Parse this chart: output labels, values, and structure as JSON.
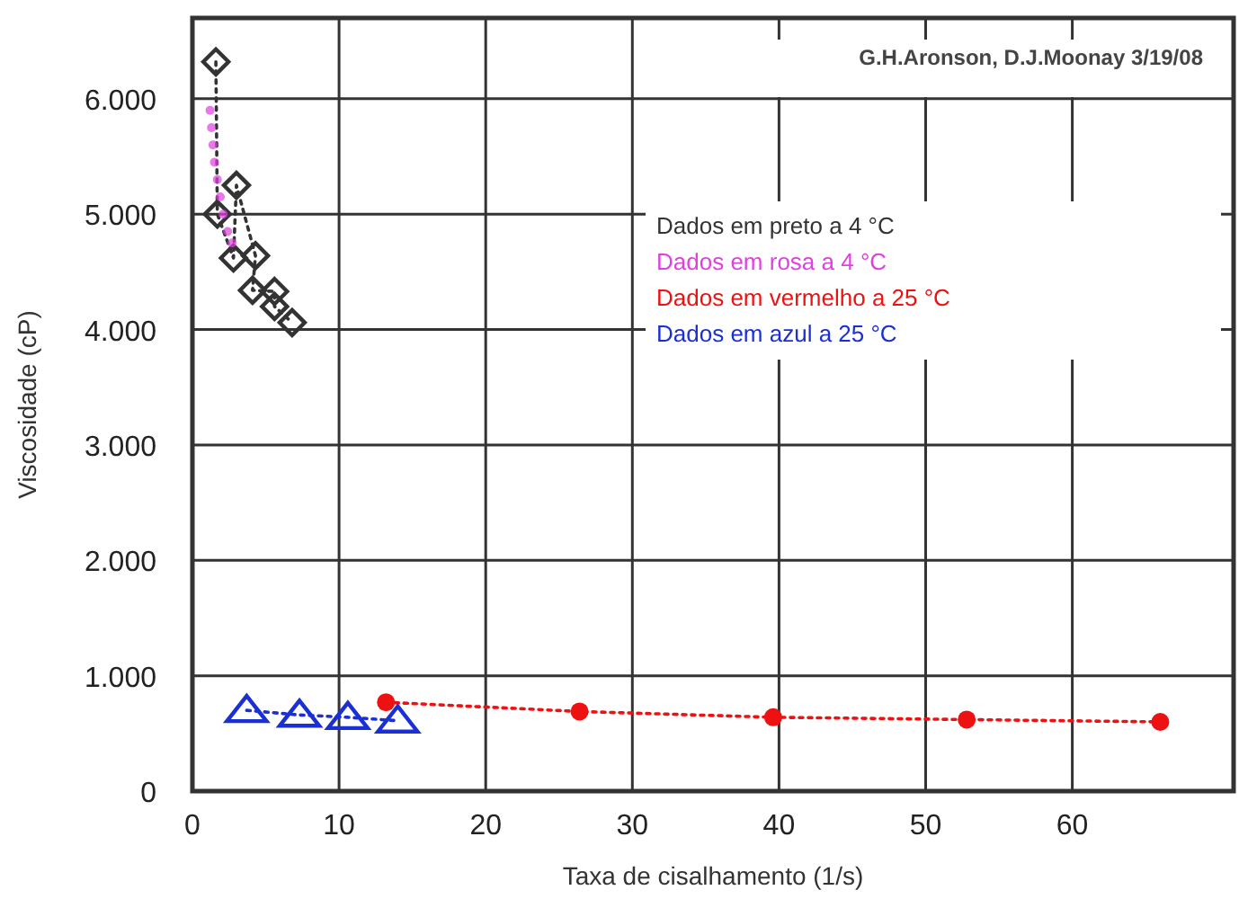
{
  "chart_data": {
    "type": "scatter",
    "xlabel": "Taxa de cisalhamento (1/s)",
    "ylabel": "Viscosidade (cP)",
    "xlim": [
      0,
      71
    ],
    "ylim": [
      0,
      6700
    ],
    "xticks": [
      0,
      10,
      20,
      30,
      40,
      50,
      60
    ],
    "yticks": [
      0,
      {
        "value": 1000,
        "label": "1.000"
      },
      {
        "value": 2000,
        "label": "2.000"
      },
      {
        "value": 3000,
        "label": "3.000"
      },
      {
        "value": 4000,
        "label": "4.000"
      },
      {
        "value": 5000,
        "label": "5.000"
      },
      {
        "value": 6000,
        "label": "6.000"
      }
    ],
    "grid": true,
    "legend": "top right",
    "annotations": [
      "G.H.Aronson, D.J.Moonay 3/19/08"
    ],
    "series": [
      {
        "name": "Dados em preto a 4 °C",
        "color": "#333333",
        "type": "line",
        "line_style": "dotted",
        "marker": "diamond",
        "x": [
          1.6,
          1.7,
          2.8,
          3.0,
          4.3,
          4.1,
          5.6,
          5.6,
          6.8
        ],
        "values": [
          6320,
          5000,
          4620,
          5250,
          4640,
          4340,
          4330,
          4200,
          4060
        ]
      },
      {
        "name": "Dados em rosa a 4 °C",
        "color": "#e040e0",
        "marker": "circle",
        "x": [
          1.2,
          1.3,
          1.4,
          1.5,
          1.7,
          1.9,
          2.1,
          2.4,
          2.7
        ],
        "values": [
          5900,
          5750,
          5600,
          5450,
          5300,
          5150,
          5000,
          4850,
          4750
        ]
      },
      {
        "name": "Dados em vermelho a 25 °C",
        "color": "#ee1111",
        "type": "line",
        "line_style": "dotted",
        "marker": "circle",
        "x": [
          13.2,
          26.4,
          39.6,
          52.8,
          66
        ],
        "values": [
          770,
          690,
          640,
          620,
          600
        ]
      },
      {
        "name": "Dados em azul a 25 °C",
        "color": "#1a2fd6",
        "type": "line",
        "line_style": "dotted",
        "marker": "triangle",
        "x": [
          3.7,
          7.3,
          10.6,
          14
        ],
        "values": [
          700,
          660,
          640,
          610
        ]
      }
    ]
  }
}
